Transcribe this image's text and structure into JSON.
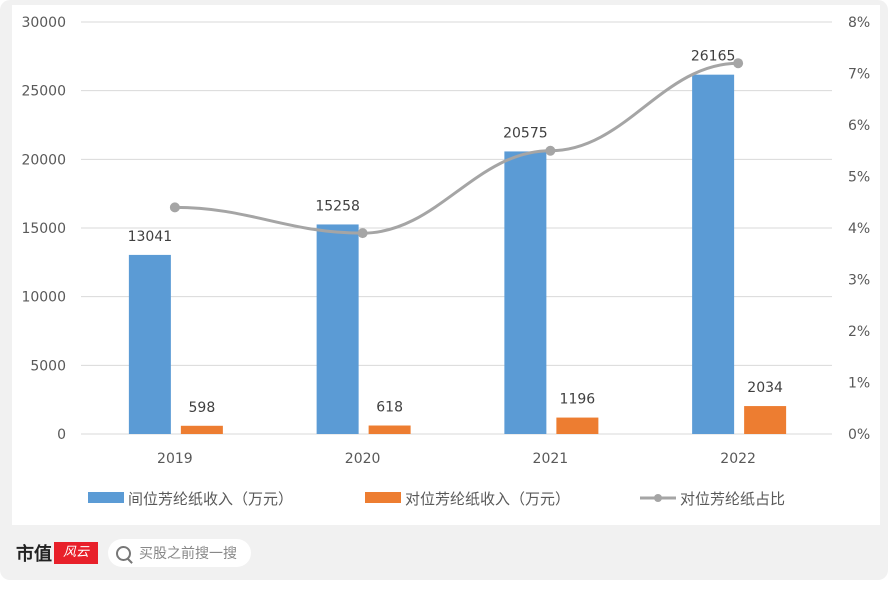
{
  "chart_data": {
    "type": "bar+line",
    "categories": [
      "2019",
      "2020",
      "2021",
      "2022"
    ],
    "series": [
      {
        "name": "间位芳纶纸收入（万元）",
        "type": "bar",
        "axis": "left",
        "color": "#5b9bd5",
        "values": [
          13041,
          15258,
          20575,
          26165
        ]
      },
      {
        "name": "对位芳纶纸收入（万元）",
        "type": "bar",
        "axis": "left",
        "color": "#ed7d31",
        "values": [
          598,
          618,
          1196,
          2034
        ]
      },
      {
        "name": "对位芳纶纸占比",
        "type": "line",
        "axis": "right",
        "color": "#a5a5a5",
        "values": [
          4.4,
          3.9,
          5.5,
          7.2
        ]
      }
    ],
    "yleft": {
      "lim": [
        0,
        30000
      ],
      "ticks": [
        "0",
        "5000",
        "10000",
        "15000",
        "20000",
        "25000",
        "30000"
      ]
    },
    "yright": {
      "lim": [
        0,
        8
      ],
      "ticks": [
        "0%",
        "1%",
        "2%",
        "3%",
        "4%",
        "5%",
        "6%",
        "7%",
        "8%"
      ]
    },
    "grid": true,
    "legend": "bottom"
  },
  "footer": {
    "brand": "市值",
    "brand_logo": "风云",
    "search_placeholder": "买股之前搜一搜"
  }
}
